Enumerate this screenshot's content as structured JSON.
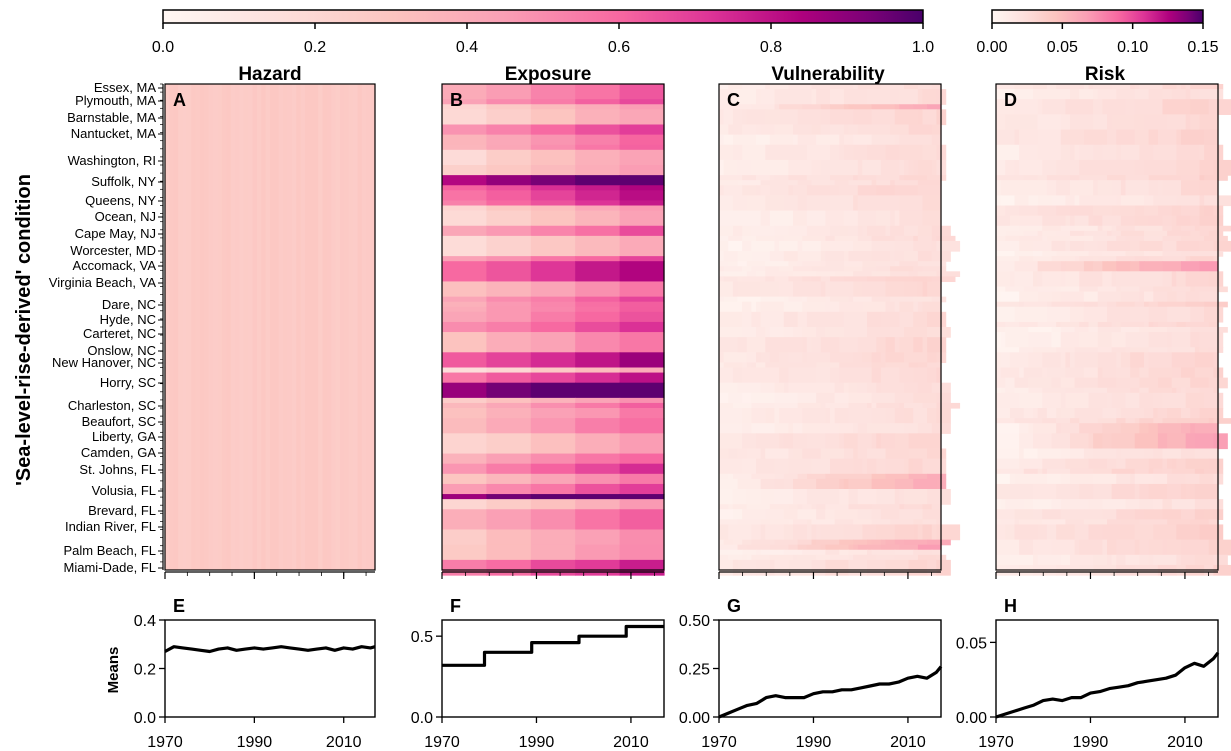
{
  "colorbars": [
    {
      "ticks": [
        "0.0",
        "0.2",
        "0.4",
        "0.6",
        "0.8",
        "1.0"
      ],
      "min": 0,
      "max": 1
    },
    {
      "ticks": [
        "0.00",
        "0.05",
        "0.10",
        "0.15"
      ],
      "min": 0,
      "max": 0.15
    }
  ],
  "y_axis_label": "'Sea-level-rise-derived' condition",
  "counties": [
    "Essex, MA",
    "Plymouth, MA",
    "Barnstable, MA",
    "Nantucket, MA",
    "Washington, RI",
    "Suffolk, NY",
    "Queens, NY",
    "Ocean, NJ",
    "Cape May, NJ",
    "Worcester, MD",
    "Accomack, VA",
    "Virginia Beach, VA",
    "Dare, NC",
    "Hyde, NC",
    "Carteret, NC",
    "Onslow, NC",
    "New Hanover, NC",
    "Horry, SC",
    "Charleston, SC",
    "Beaufort, SC",
    "Liberty, GA",
    "Camden, GA",
    "St. Johns, FL",
    "Volusia, FL",
    "Brevard, FL",
    "Indian River, FL",
    "Palm Beach, FL",
    "Miami-Dade, FL"
  ],
  "x_ticks": [
    "1970",
    "1990",
    "2010"
  ],
  "means_label": "Means",
  "colors": {
    "low": "#fff5f2",
    "mid": "#f768a1",
    "high": "#49006a",
    "line": "#000000"
  },
  "chart_data": [
    {
      "type": "heatmap",
      "panel": "A",
      "title": "Hazard",
      "x_range": [
        1970,
        2017
      ],
      "color_range": [
        0,
        1
      ],
      "typical_value": 0.28,
      "description_values": {
        "min": 0.26,
        "max": 0.3
      }
    },
    {
      "type": "heatmap",
      "panel": "B",
      "title": "Exposure",
      "x_range": [
        1970,
        2017
      ],
      "color_range": [
        0,
        1
      ],
      "decade_steps": [
        1970,
        1980,
        1990,
        2000,
        2010
      ],
      "typical_value_range": [
        0.1,
        0.95
      ]
    },
    {
      "type": "heatmap",
      "panel": "C",
      "title": "Vulnerability",
      "x_range": [
        1970,
        2017
      ],
      "color_range": [
        0,
        1
      ],
      "typical_value_range": [
        0.0,
        0.55
      ]
    },
    {
      "type": "heatmap",
      "panel": "D",
      "title": "Risk",
      "x_range": [
        1970,
        2017
      ],
      "color_range": [
        0,
        0.15
      ],
      "typical_value_range": [
        0.0,
        0.1
      ]
    },
    {
      "type": "line",
      "panel": "E",
      "ylabel": "Means",
      "ylim": [
        0,
        0.4
      ],
      "yticks": [
        "0.0",
        "0.2",
        "0.4"
      ],
      "x": [
        1970,
        1972,
        1974,
        1976,
        1978,
        1980,
        1982,
        1984,
        1986,
        1988,
        1990,
        1992,
        1994,
        1996,
        1998,
        2000,
        2002,
        2004,
        2006,
        2008,
        2010,
        2012,
        2014,
        2016,
        2017
      ],
      "y": [
        0.27,
        0.29,
        0.285,
        0.28,
        0.275,
        0.27,
        0.28,
        0.285,
        0.275,
        0.28,
        0.285,
        0.28,
        0.285,
        0.29,
        0.285,
        0.28,
        0.275,
        0.28,
        0.285,
        0.275,
        0.285,
        0.28,
        0.29,
        0.285,
        0.29
      ]
    },
    {
      "type": "line",
      "panel": "F",
      "ylim": [
        0,
        0.6
      ],
      "yticks": [
        "0.0",
        "0.5"
      ],
      "x": [
        1970,
        1979,
        1979,
        1989,
        1989,
        1999,
        1999,
        2009,
        2009,
        2017
      ],
      "y": [
        0.32,
        0.32,
        0.4,
        0.4,
        0.46,
        0.46,
        0.5,
        0.5,
        0.56,
        0.56
      ]
    },
    {
      "type": "line",
      "panel": "G",
      "ylim": [
        0,
        0.5
      ],
      "yticks": [
        "0.00",
        "0.25",
        "0.50"
      ],
      "x": [
        1970,
        1972,
        1974,
        1976,
        1978,
        1980,
        1982,
        1984,
        1986,
        1988,
        1990,
        1992,
        1994,
        1996,
        1998,
        2000,
        2002,
        2004,
        2006,
        2008,
        2010,
        2012,
        2014,
        2016,
        2017
      ],
      "y": [
        0.0,
        0.02,
        0.04,
        0.06,
        0.07,
        0.1,
        0.11,
        0.1,
        0.1,
        0.1,
        0.12,
        0.13,
        0.13,
        0.14,
        0.14,
        0.15,
        0.16,
        0.17,
        0.17,
        0.18,
        0.2,
        0.21,
        0.2,
        0.23,
        0.26
      ]
    },
    {
      "type": "line",
      "panel": "H",
      "ylim": [
        0,
        0.065
      ],
      "yticks": [
        "0.00",
        "0.05"
      ],
      "x": [
        1970,
        1972,
        1974,
        1976,
        1978,
        1980,
        1982,
        1984,
        1986,
        1988,
        1990,
        1992,
        1994,
        1996,
        1998,
        2000,
        2002,
        2004,
        2006,
        2008,
        2010,
        2012,
        2014,
        2016,
        2017
      ],
      "y": [
        0.0,
        0.002,
        0.004,
        0.006,
        0.008,
        0.011,
        0.012,
        0.011,
        0.013,
        0.013,
        0.016,
        0.017,
        0.019,
        0.02,
        0.021,
        0.023,
        0.024,
        0.025,
        0.026,
        0.028,
        0.033,
        0.036,
        0.034,
        0.039,
        0.043
      ]
    }
  ]
}
